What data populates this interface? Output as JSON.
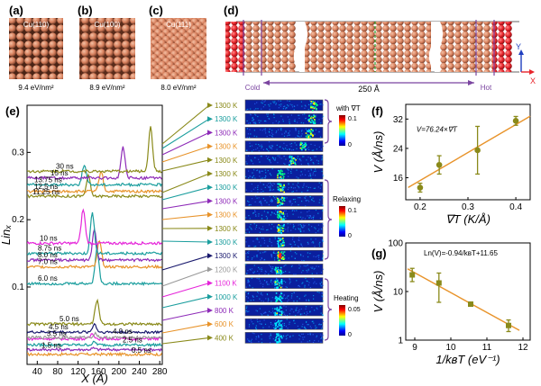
{
  "panels": {
    "a": {
      "label": "(a)",
      "facet": "Cu(110)",
      "energy": "9.4 eV/nm²"
    },
    "b": {
      "label": "(b)",
      "facet": "Cu(100)",
      "energy": "8.9 eV/nm²"
    },
    "c": {
      "label": "(c)",
      "facet": "Cu(111)",
      "energy": "8.0 eV/nm²"
    },
    "d": {
      "label": "(d)",
      "cold": "Cold",
      "hot": "Hot",
      "length": "250 Å",
      "axis_y": "Y",
      "axis_x": "X"
    },
    "e": {
      "label": "(e)"
    },
    "f": {
      "label": "(f)"
    },
    "g": {
      "label": "(g)"
    }
  },
  "legends": {
    "grad": "with ∇T",
    "relax": "Relaxing",
    "heat": "Heating",
    "grad_ticks": [
      "0.1",
      "0"
    ],
    "relax_ticks": [
      "0.1",
      "0"
    ],
    "heat_ticks": [
      "0.05",
      "0"
    ]
  },
  "colors": {
    "cu_atom": "#d9825f",
    "hot_atom": "#e8242b",
    "bracket": "#7b45a0",
    "fit_line": "#e8932a",
    "marker": "#8a8a1a"
  },
  "snapshots": [
    {
      "temp": "1300 K",
      "color": "#8a8a1a"
    },
    {
      "temp": "1300 K",
      "color": "#1b9e9e"
    },
    {
      "temp": "1300 K",
      "color": "#8e2bb8"
    },
    {
      "temp": "1300 K",
      "color": "#e8932a"
    },
    {
      "temp": "1300 K",
      "color": "#8a8a1a"
    },
    {
      "temp": "1300 K",
      "color": "#8a8a1a"
    },
    {
      "temp": "1300 K",
      "color": "#1b9e9e"
    },
    {
      "temp": "1300 K",
      "color": "#8e2bb8"
    },
    {
      "temp": "1300 K",
      "color": "#e8932a"
    },
    {
      "temp": "1300 K",
      "color": "#8a8a1a"
    },
    {
      "temp": "1300 K",
      "color": "#1b9e9e"
    },
    {
      "temp": "1300 K",
      "color": "#1a1a6e"
    },
    {
      "temp": "1200 K",
      "color": "#999999"
    },
    {
      "temp": "1100 K",
      "color": "#e524d9"
    },
    {
      "temp": "1000 K",
      "color": "#1b9e9e"
    },
    {
      "temp": "800 K",
      "color": "#8e2bb8"
    },
    {
      "temp": "600 K",
      "color": "#e8932a"
    },
    {
      "temp": "400 K",
      "color": "#8a8a1a"
    }
  ],
  "chart_data": [
    {
      "panel": "e",
      "type": "line",
      "xlabel": "X (Å)",
      "ylabel": "Linₓ",
      "xticks": [
        "40",
        "80",
        "120",
        "160",
        "200",
        "240",
        "280"
      ],
      "yticks": [
        "0.1",
        "0.2",
        "0.3"
      ],
      "xlim": [
        20,
        285
      ],
      "ylim": [
        -0.015,
        0.37
      ],
      "series": [
        {
          "name": "0.5 ns",
          "offset": 0.0,
          "peak_x": 150,
          "peak_h": 0.0,
          "color": "#e8932a"
        },
        {
          "name": "1.5 ns",
          "offset": 0.007,
          "peak_x": 150,
          "peak_h": 0.002,
          "color": "#8e2bb8"
        },
        {
          "name": "2.5 ns",
          "offset": 0.014,
          "peak_x": 152,
          "peak_h": 0.004,
          "color": "#1b9e9e"
        },
        {
          "name": "3.5 ns",
          "offset": 0.023,
          "peak_x": 148,
          "peak_h": 0.008,
          "color": "#e524d9"
        },
        {
          "name": "4.0 ns",
          "offset": 0.025,
          "peak_x": 154,
          "peak_h": 0.006,
          "color": "#999999"
        },
        {
          "name": "4.5 ns",
          "offset": 0.033,
          "peak_x": 152,
          "peak_h": 0.012,
          "color": "#1a1a6e"
        },
        {
          "name": "5.0 ns",
          "offset": 0.045,
          "peak_x": 157,
          "peak_h": 0.035,
          "color": "#8a8a1a"
        },
        {
          "name": "6.0 ns",
          "offset": 0.105,
          "peak_x": 157,
          "peak_h": 0.05,
          "color": "#1b9e9e"
        },
        {
          "name": "7.0 ns",
          "offset": 0.13,
          "peak_x": 162,
          "peak_h": 0.04,
          "color": "#e8932a"
        },
        {
          "name": "8.0 ns",
          "offset": 0.14,
          "peak_x": 152,
          "peak_h": 0.045,
          "color": "#8e2bb8"
        },
        {
          "name": "8.75 ns",
          "offset": 0.15,
          "peak_x": 148,
          "peak_h": 0.06,
          "color": "#1b9e9e"
        },
        {
          "name": "10 ns",
          "offset": 0.165,
          "peak_x": 130,
          "peak_h": 0.05,
          "color": "#e524d9"
        },
        {
          "name": "11.25 ns",
          "offset": 0.235,
          "peak_x": 140,
          "peak_h": 0.03,
          "color": "#8a8a1a"
        },
        {
          "name": "12.5 ns",
          "offset": 0.242,
          "peak_x": 165,
          "peak_h": 0.03,
          "color": "#e8932a"
        },
        {
          "name": "13.75 ns",
          "offset": 0.252,
          "peak_x": 132,
          "peak_h": 0.03,
          "color": "#1b9e9e"
        },
        {
          "name": "15 ns",
          "offset": 0.262,
          "peak_x": 208,
          "peak_h": 0.045,
          "color": "#8e2bb8"
        },
        {
          "name": "30 ns",
          "offset": 0.272,
          "peak_x": 262,
          "peak_h": 0.065,
          "color": "#8a8a1a"
        }
      ]
    },
    {
      "panel": "f",
      "type": "scatter",
      "xlabel": "∇T (K/Å)",
      "ylabel": "V (Å/ns)",
      "xticks": [
        "0.2",
        "0.3",
        "0.4"
      ],
      "yticks": [
        "16",
        "24",
        "32"
      ],
      "xlim": [
        0.17,
        0.43
      ],
      "ylim": [
        10,
        36
      ],
      "annotation": "V=76.24×∇T",
      "fit": {
        "slope": 76.24,
        "intercept": 0
      },
      "points": [
        {
          "x": 0.2,
          "y": 13.3,
          "err": 1.2
        },
        {
          "x": 0.24,
          "y": 19.5,
          "err": 2.5
        },
        {
          "x": 0.32,
          "y": 23.5,
          "err": 6.5
        },
        {
          "x": 0.4,
          "y": 31.5,
          "err": 1.2
        }
      ]
    },
    {
      "panel": "g",
      "type": "scatter",
      "xlabel": "1/kʙT (eV⁻¹)",
      "ylabel": "V (Å/ns)",
      "xticks": [
        "9",
        "10",
        "11",
        "12"
      ],
      "yticks": [
        "1",
        "10",
        "100"
      ],
      "xlim": [
        8.75,
        12.2
      ],
      "ylim": [
        1,
        100
      ],
      "log_y": true,
      "annotation": "Ln(V)=-0.94/kʙT+11.65",
      "fit": {
        "slope": -0.94,
        "intercept": 11.65
      },
      "points": [
        {
          "x": 8.93,
          "y": 22.0,
          "lo": 16.0,
          "hi": 30.0
        },
        {
          "x": 9.67,
          "y": 15.0,
          "lo": 6.0,
          "hi": 24.0
        },
        {
          "x": 10.55,
          "y": 5.5,
          "lo": 5.0,
          "hi": 6.0
        },
        {
          "x": 11.6,
          "y": 2.0,
          "lo": 1.5,
          "hi": 2.6
        }
      ]
    }
  ]
}
